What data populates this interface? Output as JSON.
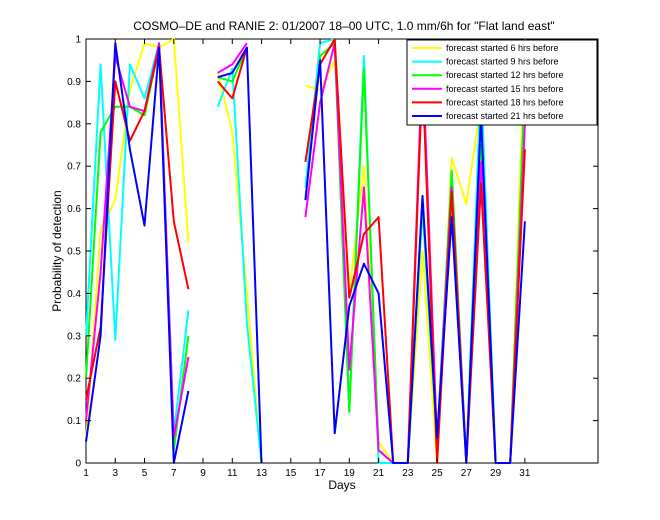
{
  "chart_data": {
    "type": "line",
    "title": "COSMO–DE and RANIE 2: 01/2007 18–00 UTC, 1.0 mm/6h for \"Flat land east\"",
    "xlabel": "Days",
    "ylabel": "Probability of detection",
    "xlim": [
      1,
      36
    ],
    "ylim": [
      0,
      1
    ],
    "xticks": [
      1,
      3,
      5,
      7,
      9,
      11,
      13,
      15,
      17,
      19,
      21,
      23,
      25,
      27,
      29,
      31
    ],
    "yticks": [
      0,
      0.1,
      0.2,
      0.3,
      0.4,
      0.5,
      0.6,
      0.7,
      0.8,
      0.9,
      1
    ],
    "ytick_labels": [
      "0",
      "0.1",
      "0.2",
      "0.3",
      "0.4",
      "0.5",
      "0.6",
      "0.7",
      "0.8",
      "0.9",
      "1"
    ],
    "grid": false,
    "legend_position": "top-right",
    "x": [
      1,
      2,
      3,
      4,
      5,
      6,
      7,
      8,
      9,
      10,
      11,
      12,
      13,
      14,
      15,
      16,
      17,
      18,
      19,
      20,
      21,
      22,
      23,
      24,
      25,
      26,
      27,
      28,
      29,
      30,
      31
    ],
    "series": [
      {
        "name": "forecast started 6 hrs before",
        "color": "#ffff00",
        "values": [
          0.05,
          0.55,
          0.62,
          0.88,
          0.99,
          0.98,
          1.0,
          0.52,
          null,
          0.92,
          0.78,
          0.4,
          0.0,
          null,
          null,
          0.89,
          0.88,
          0.95,
          0.4,
          0.7,
          0.05,
          0.0,
          0.0,
          0.5,
          0.0,
          0.72,
          0.61,
          0.85,
          0.0,
          0.0,
          1.0
        ]
      },
      {
        "name": "forecast started 9 hrs before",
        "color": "#00ffff",
        "values": [
          0.3,
          0.94,
          0.29,
          0.94,
          0.86,
          0.99,
          0.07,
          0.36,
          null,
          0.84,
          0.93,
          0.33,
          0.0,
          null,
          null,
          0.65,
          0.99,
          1.0,
          0.12,
          0.96,
          0.0,
          0.0,
          0.0,
          0.6,
          0.05,
          0.6,
          0.0,
          0.91,
          0.0,
          0.0,
          0.88
        ]
      },
      {
        "name": "forecast started 12 hrs before",
        "color": "#00ff00",
        "values": [
          0.2,
          0.78,
          0.84,
          0.84,
          0.82,
          0.98,
          0.03,
          0.3,
          null,
          0.91,
          0.9,
          0.98,
          null,
          null,
          null,
          0.62,
          0.96,
          0.99,
          0.12,
          0.93,
          0.03,
          0.0,
          0.0,
          0.62,
          0.05,
          0.69,
          0.0,
          0.75,
          0.0,
          0.0,
          0.9
        ]
      },
      {
        "name": "forecast started 15 hrs before",
        "color": "#ff00ff",
        "values": [
          0.1,
          0.45,
          0.96,
          0.84,
          0.83,
          0.99,
          0.06,
          0.25,
          null,
          0.92,
          0.94,
          0.99,
          null,
          null,
          null,
          0.58,
          0.85,
          0.99,
          0.22,
          0.65,
          0.03,
          0.0,
          0.0,
          0.96,
          0.05,
          0.65,
          0.0,
          0.71,
          0.0,
          0.0,
          0.8
        ]
      },
      {
        "name": "forecast started 18 hrs before",
        "color": "#ff0000",
        "values": [
          0.15,
          0.32,
          0.9,
          0.76,
          0.83,
          0.98,
          0.57,
          0.41,
          null,
          0.9,
          0.86,
          0.98,
          null,
          null,
          null,
          0.71,
          0.94,
          1.0,
          0.39,
          0.54,
          0.58,
          0.0,
          0.0,
          0.92,
          0.0,
          0.64,
          0.0,
          0.66,
          0.0,
          0.0,
          0.74
        ]
      },
      {
        "name": "forecast started 21 hrs before",
        "color": "#0000ff",
        "values": [
          0.05,
          0.3,
          0.99,
          0.74,
          0.56,
          0.98,
          0.0,
          0.17,
          null,
          0.91,
          0.92,
          0.98,
          0.0,
          null,
          null,
          0.62,
          0.95,
          0.07,
          0.37,
          0.47,
          0.4,
          0.0,
          0.0,
          0.63,
          0.06,
          0.58,
          0.0,
          0.82,
          0.0,
          0.0,
          0.57
        ]
      }
    ]
  }
}
